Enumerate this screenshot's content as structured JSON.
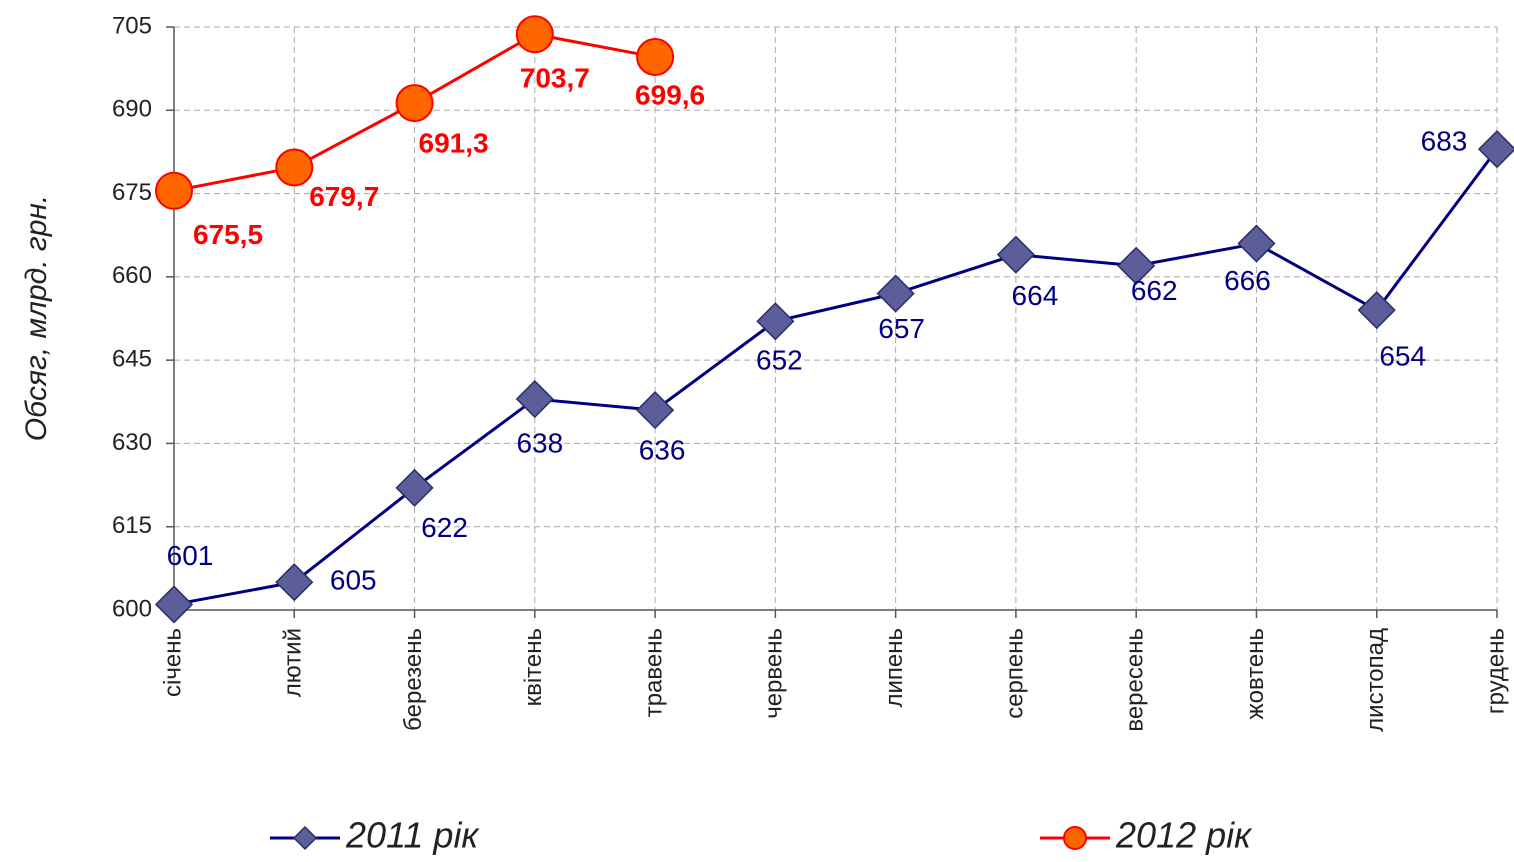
{
  "chart_data": {
    "type": "line",
    "y_axis_label": "Обсяг, млрд. грн.",
    "categories": [
      "січень",
      "лютий",
      "березень",
      "квітень",
      "травень",
      "червень",
      "липень",
      "серпень",
      "вересень",
      "жовтень",
      "листопад",
      "грудень"
    ],
    "series": [
      {
        "name": "2011 рік",
        "color": "#000080",
        "marker": "diamond",
        "marker_color": "#5b5e99",
        "values": [
          601,
          605,
          622,
          638,
          636,
          652,
          657,
          664,
          662,
          666,
          654,
          683
        ]
      },
      {
        "name": "2012 рік",
        "color": "#ff0000",
        "marker": "circle",
        "marker_color": "#ff6600",
        "values": [
          675.5,
          679.7,
          691.3,
          703.7,
          699.6,
          null,
          null,
          null,
          null,
          null,
          null,
          null
        ],
        "value_labels": [
          "675,5",
          "679,7",
          "691,3",
          "703,7",
          "699,6",
          null,
          null,
          null,
          null,
          null,
          null,
          null
        ]
      }
    ],
    "ylim": [
      600,
      705
    ],
    "yticks": [
      600,
      615,
      630,
      645,
      660,
      675,
      690,
      705
    ],
    "grid": true,
    "legend": "bottom"
  }
}
